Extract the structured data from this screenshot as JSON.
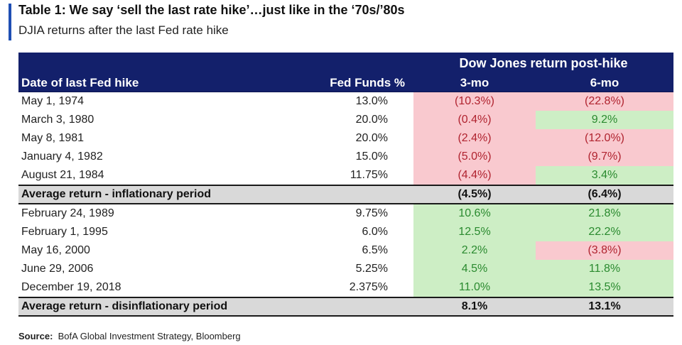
{
  "title": "Table 1: We say ‘sell the last rate hike’…just like in the ‘70s/’80s",
  "subtitle": "DJIA returns after the last Fed rate hike",
  "table": {
    "super_header": "Dow Jones return post-hike",
    "columns": [
      "Date of last Fed hike",
      "Fed Funds %",
      "3-mo",
      "6-mo"
    ],
    "groups": [
      {
        "rows": [
          {
            "date": "May 1, 1974",
            "fed": "13.0%",
            "m3": "(10.3%)",
            "m6": "(22.8%)"
          },
          {
            "date": "March 3, 1980",
            "fed": "20.0%",
            "m3": "(0.4%)",
            "m6": "9.2%"
          },
          {
            "date": "May 8, 1981",
            "fed": "20.0%",
            "m3": "(2.4%)",
            "m6": "(12.0%)"
          },
          {
            "date": "January 4, 1982",
            "fed": "15.0%",
            "m3": "(5.0%)",
            "m6": "(9.7%)"
          },
          {
            "date": "August 21, 1984",
            "fed": "11.75%",
            "m3": "(4.4%)",
            "m6": "3.4%"
          }
        ],
        "average": {
          "label": "Average return - inflationary period",
          "m3": "(4.5%)",
          "m6": "(6.4%)"
        }
      },
      {
        "rows": [
          {
            "date": "February 24, 1989",
            "fed": "9.75%",
            "m3": "10.6%",
            "m6": "21.8%"
          },
          {
            "date": "February 1, 1995",
            "fed": "6.0%",
            "m3": "12.5%",
            "m6": "22.2%"
          },
          {
            "date": "May 16, 2000",
            "fed": "6.5%",
            "m3": "2.2%",
            "m6": "(3.8%)"
          },
          {
            "date": "June 29, 2006",
            "fed": "5.25%",
            "m3": "4.5%",
            "m6": "11.8%"
          },
          {
            "date": "December 19, 2018",
            "fed": "2.375%",
            "m3": "11.0%",
            "m6": "13.5%"
          }
        ],
        "average": {
          "label": "Average return - disinflationary period",
          "m3": "8.1%",
          "m6": "13.1%"
        }
      }
    ]
  },
  "source": {
    "label": "Source:",
    "text": "BofA Global Investment Strategy, Bloomberg"
  },
  "colors": {
    "header_bg": "#13206b",
    "accent": "#1f4fb4",
    "negative_bg": "#f9c9cf",
    "negative_text": "#b0232f",
    "positive_bg": "#cdeec5",
    "positive_text": "#2a8a2f",
    "average_bg": "#d9d9d9"
  }
}
